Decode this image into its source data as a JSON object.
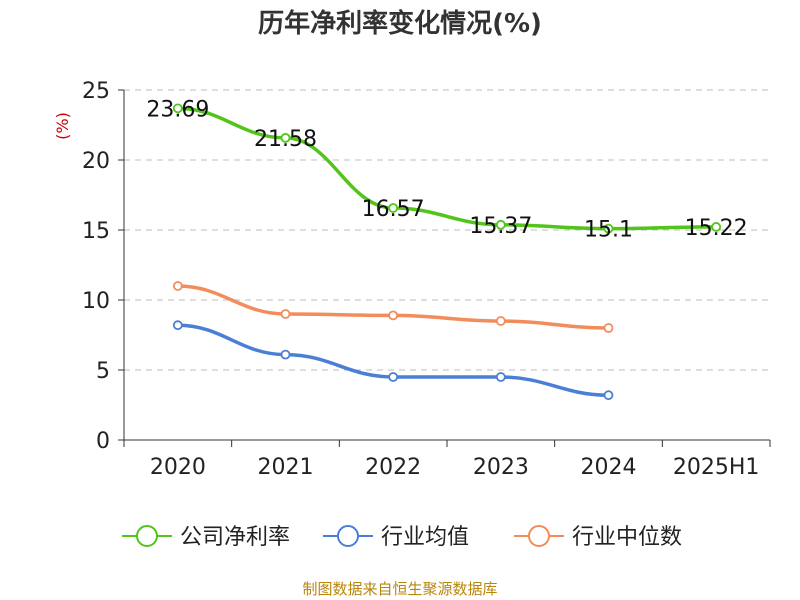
{
  "chart_data": {
    "type": "line",
    "title": "历年净利率变化情况(%)",
    "ylabel": "(%)",
    "xlabel": "",
    "categories": [
      "2020",
      "2021",
      "2022",
      "2023",
      "2024",
      "2025H1"
    ],
    "ylim": [
      0,
      25
    ],
    "yticks": [
      0,
      5,
      10,
      15,
      20,
      25
    ],
    "grid": true,
    "legend_position": "bottom",
    "series": [
      {
        "name": "公司净利率",
        "color": "#52c41a",
        "values": [
          23.69,
          21.58,
          16.57,
          15.37,
          15.1,
          15.22
        ],
        "labels": [
          "23.69",
          "21.58",
          "16.57",
          "15.37",
          "15.1",
          "15.22"
        ]
      },
      {
        "name": "行业均值",
        "color": "#4a7fd6",
        "values": [
          8.2,
          6.1,
          4.5,
          4.5,
          3.2,
          null
        ]
      },
      {
        "name": "行业中位数",
        "color": "#f28c5b",
        "values": [
          11.0,
          9.0,
          8.9,
          8.5,
          8.0,
          null
        ]
      }
    ]
  },
  "source": "制图数据来自恒生聚源数据库"
}
